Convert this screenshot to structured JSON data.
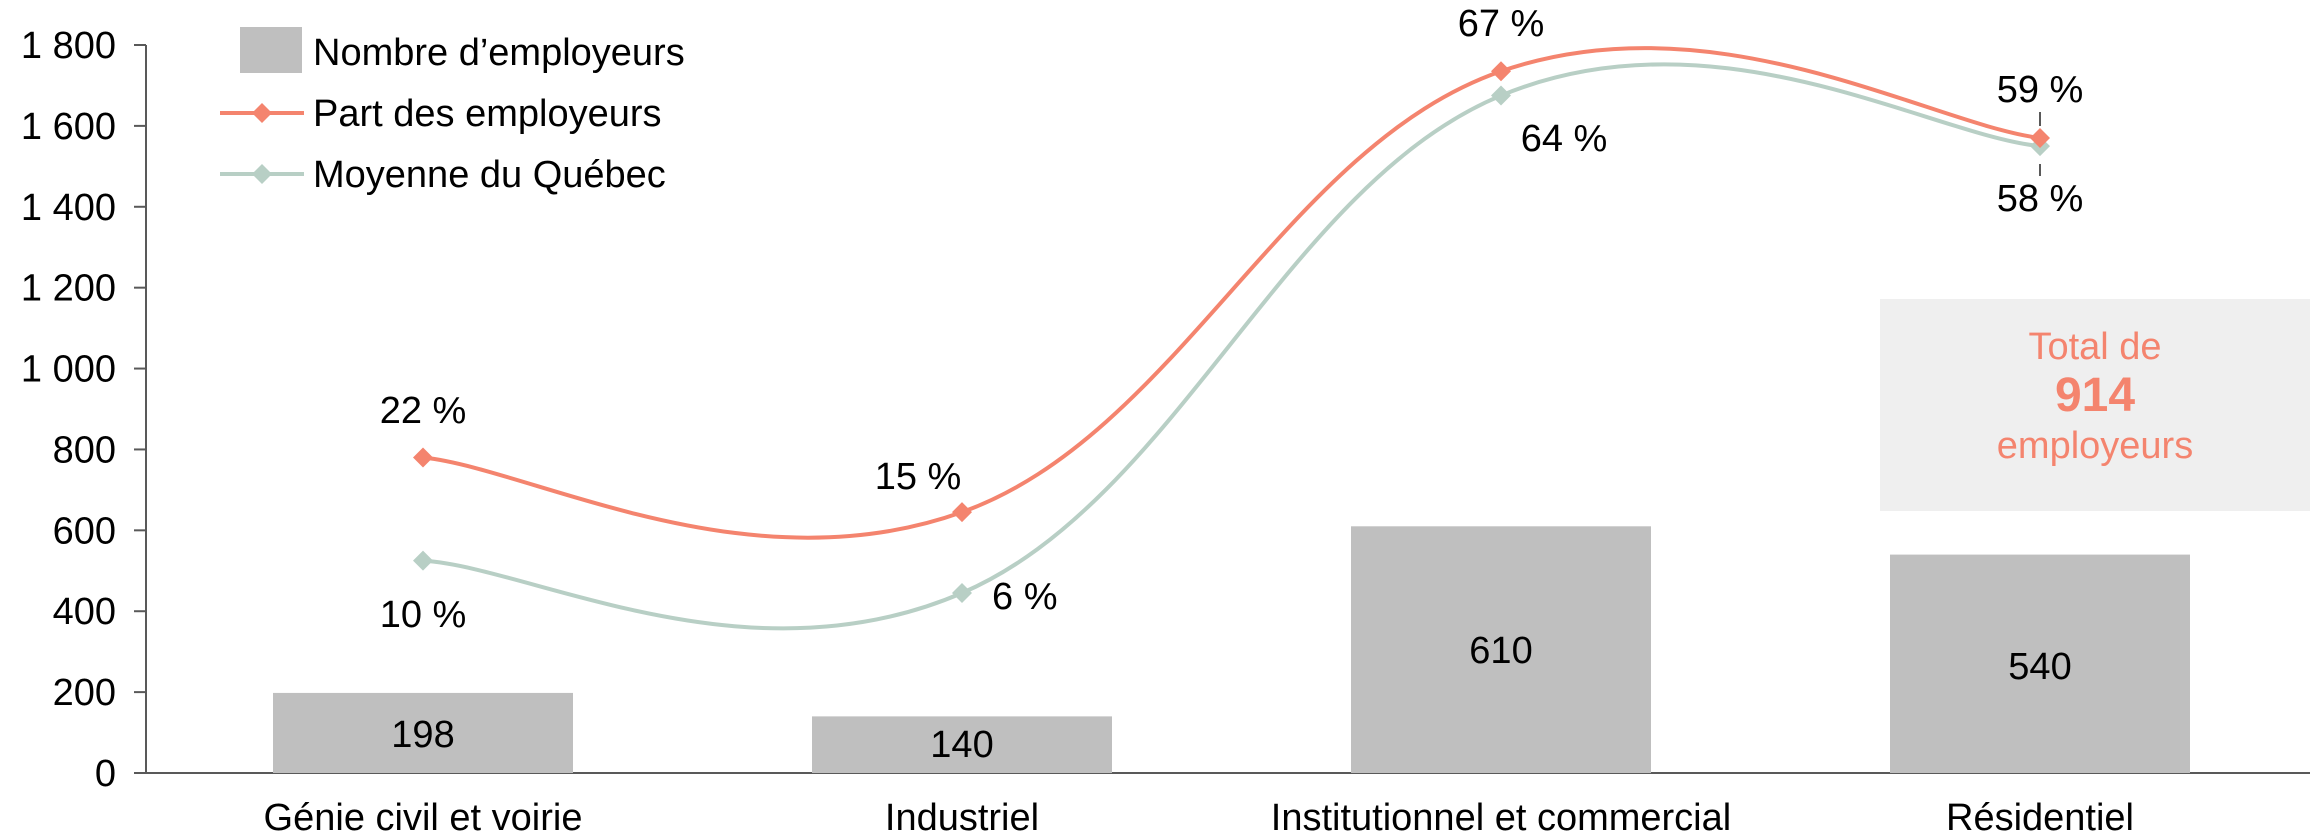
{
  "chart_data": {
    "type": "bar",
    "categories": [
      "Génie civil et voirie",
      "Industriel",
      "Institutionnel et commercial",
      "Résidentiel"
    ],
    "ylim": [
      0,
      1800
    ],
    "yticks": [
      0,
      200,
      400,
      600,
      800,
      1000,
      1200,
      1400,
      1600,
      1800
    ],
    "ytick_labels": [
      "0",
      "200",
      "400",
      "600",
      "800",
      "1 000",
      "1 200",
      "1 400",
      "1 600",
      "1 800"
    ],
    "grid": false,
    "legend_position": "top-left",
    "series": [
      {
        "name": "Nombre d’employeurs",
        "type": "bar",
        "color": "#bfbfbf",
        "values": [
          198,
          140,
          610,
          540
        ],
        "labels": [
          "198",
          "140",
          "610",
          "540"
        ]
      },
      {
        "name": "Part des employeurs",
        "type": "line",
        "color": "#f4846e",
        "values": [
          22,
          15,
          67,
          59
        ],
        "plotted_values": [
          780,
          645,
          1735,
          1570
        ],
        "labels": [
          "22 %",
          "15 %",
          "67 %",
          "59 %"
        ]
      },
      {
        "name": "Moyenne du Québec",
        "type": "line",
        "color": "#b8cfc5",
        "values": [
          10,
          6,
          64,
          58
        ],
        "plotted_values": [
          525,
          445,
          1675,
          1550
        ],
        "labels": [
          "10 %",
          "6 %",
          "64 %",
          "58 %"
        ]
      }
    ],
    "annotation": {
      "line1": "Total de",
      "value": "914",
      "line3": "employeurs",
      "color": "#f4846e"
    }
  }
}
